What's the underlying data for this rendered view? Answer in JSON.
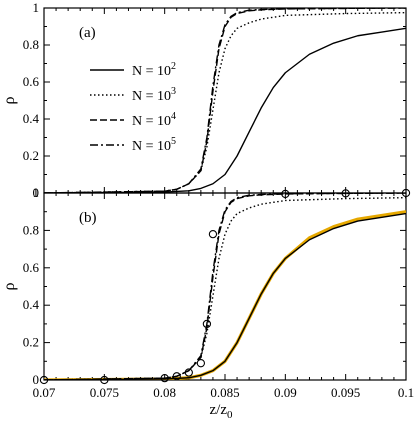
{
  "chart_data": [
    {
      "type": "line",
      "panel_label": "(a)",
      "xlim": [
        0.07,
        0.1
      ],
      "ylim": [
        0,
        1
      ],
      "ylabel": "ρ",
      "y_ticks": [
        "0",
        "0.2",
        "0.4",
        "0.6",
        "0.8",
        "1"
      ],
      "legend_placement": "middle-left",
      "series": [
        {
          "name_base": "N = 10",
          "name_exp": "2",
          "style": "solid",
          "x": [
            0.07,
            0.08,
            0.082,
            0.083,
            0.084,
            0.085,
            0.086,
            0.087,
            0.088,
            0.089,
            0.09,
            0.092,
            0.094,
            0.096,
            0.098,
            0.1
          ],
          "y": [
            0.0,
            0.005,
            0.012,
            0.025,
            0.05,
            0.1,
            0.2,
            0.33,
            0.46,
            0.57,
            0.65,
            0.75,
            0.81,
            0.85,
            0.87,
            0.89
          ]
        },
        {
          "name_base": "N = 10",
          "name_exp": "3",
          "style": "dotted",
          "x": [
            0.07,
            0.08,
            0.081,
            0.082,
            0.083,
            0.0835,
            0.084,
            0.0845,
            0.085,
            0.0855,
            0.086,
            0.087,
            0.088,
            0.09,
            0.095,
            0.1
          ],
          "y": [
            0.0,
            0.01,
            0.02,
            0.05,
            0.12,
            0.25,
            0.45,
            0.65,
            0.78,
            0.85,
            0.89,
            0.92,
            0.94,
            0.96,
            0.97,
            0.975
          ]
        },
        {
          "name_base": "N = 10",
          "name_exp": "4",
          "style": "dashed",
          "x": [
            0.07,
            0.08,
            0.081,
            0.082,
            0.083,
            0.0835,
            0.084,
            0.0845,
            0.085,
            0.0855,
            0.086,
            0.087,
            0.088,
            0.09,
            0.095,
            0.1
          ],
          "y": [
            0.0,
            0.01,
            0.02,
            0.05,
            0.12,
            0.28,
            0.55,
            0.78,
            0.9,
            0.95,
            0.97,
            0.985,
            0.99,
            0.995,
            0.998,
            1.0
          ]
        },
        {
          "name_base": "N = 10",
          "name_exp": "5",
          "style": "dashdot",
          "x": [
            0.07,
            0.08,
            0.081,
            0.082,
            0.083,
            0.0835,
            0.084,
            0.0845,
            0.085,
            0.0855,
            0.086,
            0.087,
            0.088,
            0.09,
            0.095,
            0.1
          ],
          "y": [
            0.0,
            0.01,
            0.02,
            0.05,
            0.13,
            0.3,
            0.58,
            0.8,
            0.91,
            0.955,
            0.975,
            0.988,
            0.992,
            0.996,
            0.998,
            1.0
          ]
        }
      ]
    },
    {
      "type": "line",
      "panel_label": "(b)",
      "xlim": [
        0.07,
        0.1
      ],
      "ylim": [
        0,
        1
      ],
      "xlabel_base": "z/z",
      "xlabel_sub": "0",
      "ylabel": "ρ",
      "x_ticks": [
        "0.07",
        "0.075",
        "0.08",
        "0.085",
        "0.09",
        "0.095",
        "0.1"
      ],
      "y_ticks": [
        "0",
        "0.2",
        "0.4",
        "0.6",
        "0.8",
        "1"
      ],
      "series": [
        {
          "style": "solid-orange",
          "color": "#e6a800",
          "x": [
            0.07,
            0.08,
            0.082,
            0.083,
            0.084,
            0.085,
            0.086,
            0.087,
            0.088,
            0.089,
            0.09,
            0.092,
            0.094,
            0.096,
            0.098,
            0.1
          ],
          "y": [
            0.0,
            0.005,
            0.012,
            0.025,
            0.05,
            0.1,
            0.2,
            0.33,
            0.46,
            0.57,
            0.65,
            0.76,
            0.82,
            0.86,
            0.88,
            0.9
          ]
        },
        {
          "style": "solid",
          "color": "#000000",
          "x": [
            0.07,
            0.08,
            0.082,
            0.083,
            0.084,
            0.085,
            0.086,
            0.087,
            0.088,
            0.089,
            0.09,
            0.092,
            0.094,
            0.096,
            0.098,
            0.1
          ],
          "y": [
            0.0,
            0.005,
            0.012,
            0.025,
            0.05,
            0.1,
            0.2,
            0.33,
            0.46,
            0.57,
            0.65,
            0.75,
            0.81,
            0.85,
            0.87,
            0.89
          ]
        },
        {
          "style": "dotted",
          "color": "#000000",
          "x": [
            0.07,
            0.08,
            0.081,
            0.082,
            0.083,
            0.0835,
            0.084,
            0.0845,
            0.085,
            0.0855,
            0.086,
            0.087,
            0.088,
            0.09,
            0.095,
            0.1
          ],
          "y": [
            0.0,
            0.01,
            0.02,
            0.05,
            0.12,
            0.25,
            0.45,
            0.65,
            0.78,
            0.85,
            0.89,
            0.92,
            0.94,
            0.96,
            0.97,
            0.975
          ]
        },
        {
          "style": "dashed",
          "color": "#000000",
          "x": [
            0.07,
            0.08,
            0.081,
            0.082,
            0.083,
            0.0835,
            0.084,
            0.0845,
            0.085,
            0.0855,
            0.086,
            0.087,
            0.088,
            0.09,
            0.095,
            0.1
          ],
          "y": [
            0.0,
            0.01,
            0.02,
            0.05,
            0.12,
            0.28,
            0.55,
            0.78,
            0.9,
            0.95,
            0.97,
            0.985,
            0.99,
            0.995,
            0.998,
            1.0
          ]
        },
        {
          "style": "dashdot",
          "color": "#000000",
          "x": [
            0.07,
            0.08,
            0.081,
            0.082,
            0.083,
            0.0835,
            0.084,
            0.0845,
            0.085,
            0.0855,
            0.086,
            0.087,
            0.088,
            0.09,
            0.095,
            0.1
          ],
          "y": [
            0.0,
            0.01,
            0.02,
            0.05,
            0.13,
            0.3,
            0.58,
            0.8,
            0.91,
            0.955,
            0.975,
            0.988,
            0.992,
            0.996,
            0.998,
            1.0
          ]
        }
      ],
      "markers": {
        "shape": "open-circle",
        "x": [
          0.07,
          0.075,
          0.08,
          0.081,
          0.082,
          0.083,
          0.0835,
          0.084,
          0.09,
          0.095,
          0.1
        ],
        "y": [
          0.0,
          0.0,
          0.01,
          0.02,
          0.04,
          0.09,
          0.3,
          0.78,
          0.995,
          0.998,
          1.0
        ]
      }
    }
  ]
}
